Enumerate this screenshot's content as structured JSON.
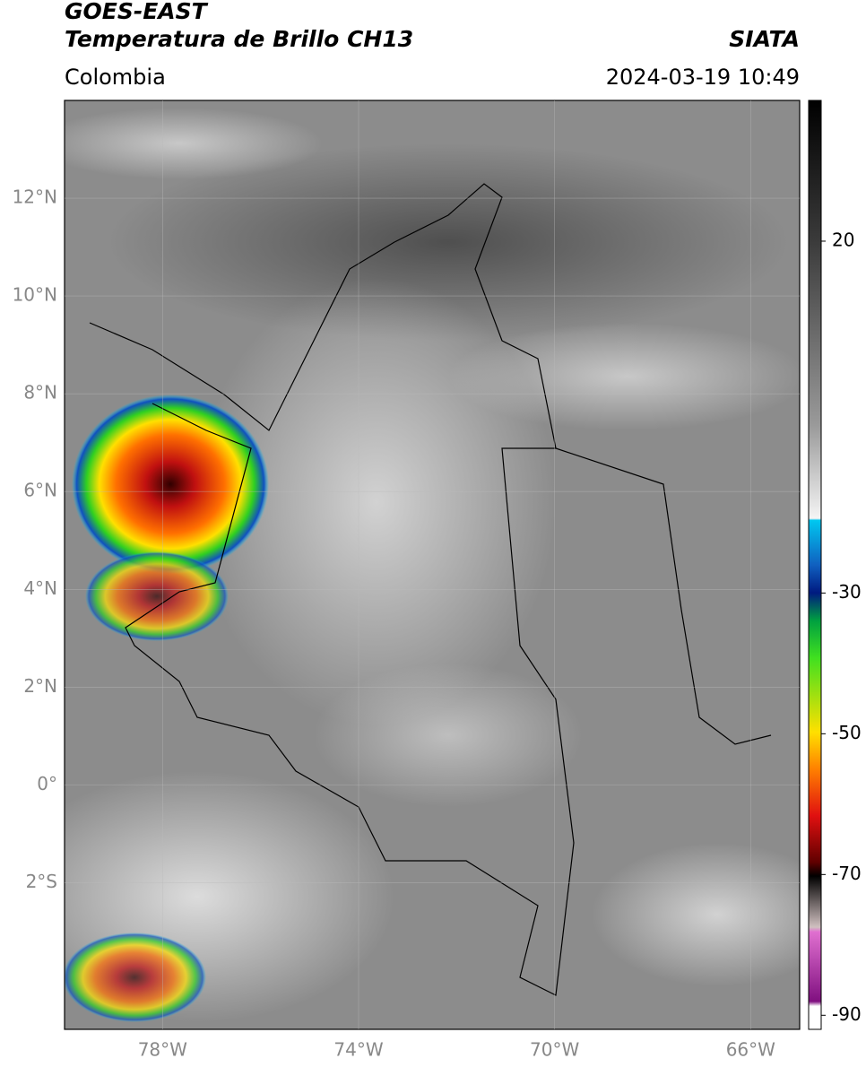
{
  "header": {
    "title": "GOES-EAST",
    "subtitle": "Temperatura de Brillo CH13",
    "source": "SIATA",
    "region": "Colombia",
    "datetime": "2024-03-19 10:49"
  },
  "map": {
    "lon_lim": [
      -80,
      -65
    ],
    "lat_lim": [
      -5,
      14
    ],
    "lat_ticks": [
      {
        "value": 12,
        "label": "12°N"
      },
      {
        "value": 10,
        "label": "10°N"
      },
      {
        "value": 8,
        "label": "8°N"
      },
      {
        "value": 6,
        "label": "6°N"
      },
      {
        "value": 4,
        "label": "4°N"
      },
      {
        "value": 2,
        "label": "2°N"
      },
      {
        "value": 0,
        "label": "0°"
      },
      {
        "value": -2,
        "label": "2°S"
      }
    ],
    "lon_ticks": [
      {
        "value": -78,
        "label": "78°W"
      },
      {
        "value": -74,
        "label": "74°W"
      },
      {
        "value": -70,
        "label": "70°W"
      },
      {
        "value": -66,
        "label": "66°W"
      }
    ]
  },
  "colorbar": {
    "lim": [
      -92,
      40
    ],
    "ticks": [
      20,
      -30,
      -50,
      -70,
      -90
    ]
  }
}
